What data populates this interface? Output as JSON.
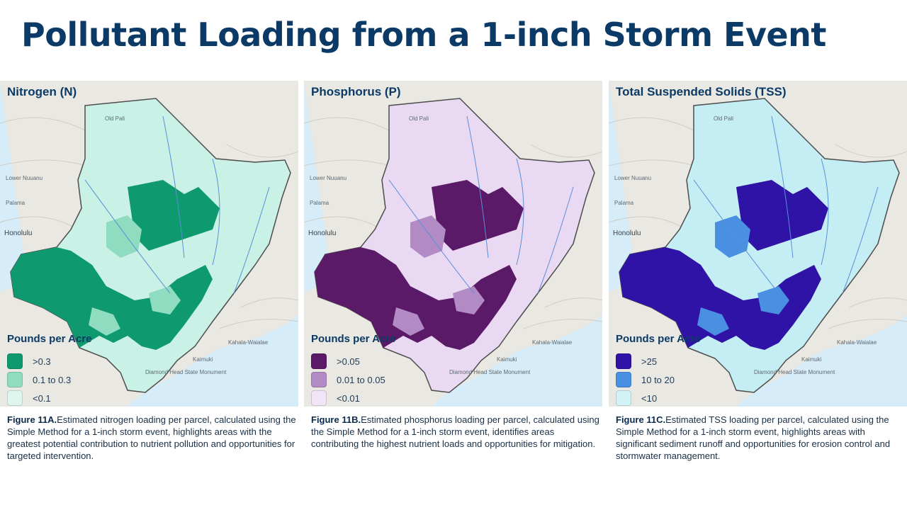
{
  "title": "Pollutant Loading from a 1-inch Storm Event",
  "map_labels": {
    "honolulu": "Honolulu",
    "old_pali": "Old Pali",
    "lower_nuuanu": "Lower Nuuanu",
    "palama": "Palama",
    "kaimuki": "Kaimuki",
    "kahala": "Kahala-Waialae",
    "diamond_head": "Diamond Head State Monument"
  },
  "panels": [
    {
      "title": "Nitrogen (N)",
      "legend_title": "Pounds per Acre",
      "legend": [
        {
          "label": ">0.3",
          "color": "#0e9a6e"
        },
        {
          "label": "0.1 to 0.3",
          "color": "#8fdcc0"
        },
        {
          "label": "<0.1",
          "color": "#dff6ef"
        }
      ],
      "watershed_fill": "#c9f1e6",
      "caption_label": "Figure 11A.",
      "caption_text": "Estimated nitrogen loading per parcel, calculated using the Simple Method for a 1-inch storm event, highlights areas with the greatest potential contribution to nutrient pollution and opportunities for targeted intervention."
    },
    {
      "title": "Phosphorus (P)",
      "legend_title": "Pounds per Acre",
      "legend": [
        {
          "label": ">0.05",
          "color": "#5b1a67"
        },
        {
          "label": "0.01 to 0.05",
          "color": "#b28ac4"
        },
        {
          "label": "<0.01",
          "color": "#f1e4f6"
        }
      ],
      "watershed_fill": "#ead9f2",
      "caption_label": "Figure 11B.",
      "caption_text": "Estimated phosphorus loading per parcel, calculated using the Simple Method for a 1-inch storm event, identifies areas contributing the highest nutrient loads and opportunities for mitigation."
    },
    {
      "title": "Total Suspended Solids (TSS)",
      "legend_title": "Pounds per Acre",
      "legend": [
        {
          "label": ">25",
          "color": "#2f12a6"
        },
        {
          "label": "10 to 20",
          "color": "#4a90e2"
        },
        {
          "label": "<10",
          "color": "#d2f3f6"
        }
      ],
      "watershed_fill": "#c4eef3",
      "caption_label": "Figure 11C.",
      "caption_text": "Estimated TSS loading per parcel, calculated using the Simple Method for a 1-inch storm event, highlights areas with significant sediment runoff and opportunities for erosion control and stormwater management."
    }
  ]
}
